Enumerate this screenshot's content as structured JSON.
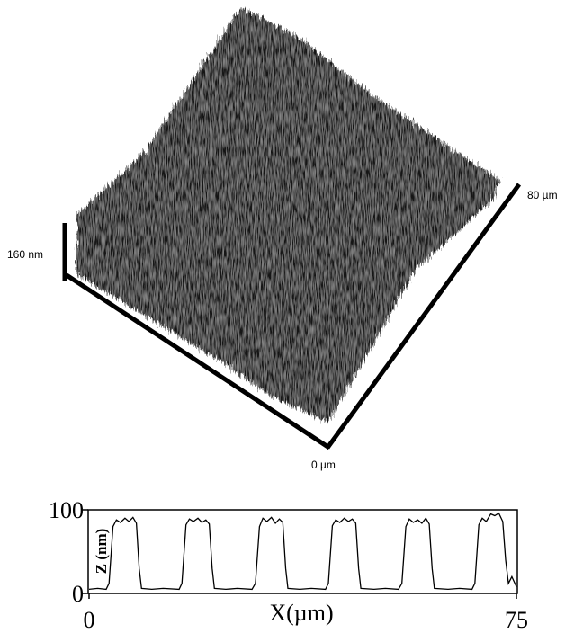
{
  "figure": {
    "z_scale": "160 nm",
    "y_scale": "80 µm",
    "origin": "0 µm"
  },
  "chart_data": {
    "type": "line",
    "xlabel": "X(µm)",
    "ylabel": "Z (nm)",
    "xlim": [
      0,
      75
    ],
    "ylim": [
      0,
      100
    ],
    "xticks": [
      0,
      75
    ],
    "yticks": [
      0,
      100
    ],
    "series": [
      {
        "color": "#000000",
        "x": [
          0,
          1.5,
          3.0,
          3.5,
          4.2,
          4.8,
          5.5,
          6.3,
          7.0,
          7.7,
          8.3,
          8.8,
          9.2,
          11,
          13,
          15.8,
          16.3,
          17.0,
          17.6,
          18.3,
          19.1,
          19.8,
          20.5,
          21.1,
          21.6,
          22.0,
          24,
          26,
          28.6,
          29.2,
          29.9,
          30.5,
          31.2,
          32.0,
          32.7,
          33.4,
          34.0,
          34.5,
          34.9,
          37,
          39,
          41.5,
          42.0,
          42.7,
          43.3,
          44.0,
          44.8,
          45.5,
          46.2,
          46.8,
          47.3,
          47.7,
          50,
          52,
          54.3,
          54.9,
          55.6,
          56.2,
          56.9,
          57.7,
          58.4,
          59.1,
          59.7,
          60.2,
          60.6,
          63,
          65,
          67.2,
          67.7,
          68.4,
          69.0,
          69.7,
          70.5,
          71.2,
          71.9,
          72.6,
          73.1,
          73.6,
          74.2,
          75
        ],
        "values": [
          5,
          6,
          5,
          12,
          80,
          88,
          85,
          90,
          86,
          91,
          84,
          30,
          6,
          5,
          6,
          5,
          12,
          82,
          89,
          86,
          90,
          85,
          88,
          83,
          30,
          6,
          5,
          6,
          5,
          12,
          80,
          90,
          86,
          91,
          84,
          89,
          85,
          30,
          6,
          5,
          6,
          5,
          12,
          81,
          88,
          85,
          90,
          86,
          89,
          84,
          30,
          6,
          5,
          6,
          5,
          12,
          80,
          89,
          85,
          88,
          84,
          90,
          83,
          30,
          6,
          5,
          6,
          5,
          12,
          82,
          90,
          86,
          95,
          93,
          96,
          86,
          40,
          12,
          20,
          8
        ]
      }
    ]
  }
}
